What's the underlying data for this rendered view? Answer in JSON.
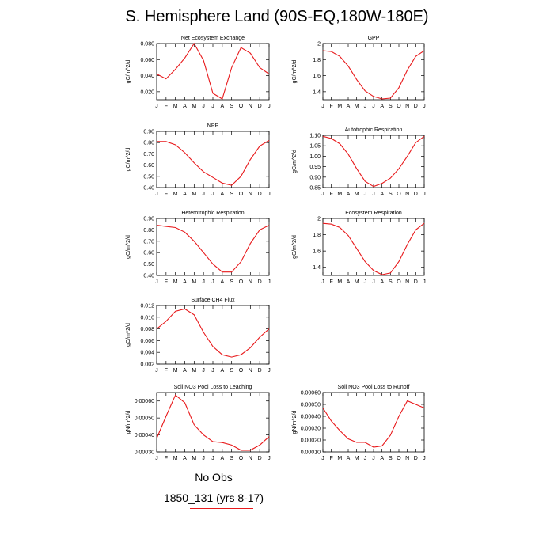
{
  "title": "S. Hemisphere Land (90S-EQ,180W-180E)",
  "colors": {
    "model": "#e8191b",
    "obs": "#2c4bd6",
    "axis": "#000000"
  },
  "legend": [
    {
      "label": "No Obs",
      "color": "#2c4bd6"
    },
    {
      "label": "1850_131 (yrs 8-17)",
      "color": "#e8191b"
    }
  ],
  "chart_data": [
    {
      "type": "line",
      "title": "Net Ecosystem Exchange",
      "ylabel": "gC/m^2/d",
      "categories": [
        "J",
        "F",
        "M",
        "A",
        "M",
        "J",
        "J",
        "A",
        "S",
        "O",
        "N",
        "D",
        "J"
      ],
      "ylim": [
        0.01,
        0.08
      ],
      "yticks": [
        0.02,
        0.04,
        0.06,
        0.08
      ],
      "ytick_labels": [
        "0.020",
        "0.040",
        "0.060",
        "0.080"
      ],
      "series": [
        {
          "values": [
            0.042,
            0.036,
            0.048,
            0.062,
            0.08,
            0.059,
            0.018,
            0.011,
            0.05,
            0.075,
            0.068,
            0.05,
            0.042
          ]
        }
      ]
    },
    {
      "type": "line",
      "title": "GPP",
      "ylabel": "gC/m^2/d",
      "categories": [
        "J",
        "F",
        "M",
        "A",
        "M",
        "J",
        "J",
        "A",
        "S",
        "O",
        "N",
        "D",
        "J"
      ],
      "ylim": [
        1.3,
        2.0
      ],
      "yticks": [
        1.4,
        1.6,
        1.8,
        2.0
      ],
      "ytick_labels": [
        "1.4",
        "1.6",
        "1.8",
        "2"
      ],
      "series": [
        {
          "values": [
            1.91,
            1.9,
            1.84,
            1.72,
            1.55,
            1.41,
            1.34,
            1.31,
            1.32,
            1.45,
            1.67,
            1.84,
            1.91
          ]
        }
      ]
    },
    {
      "type": "line",
      "title": "NPP",
      "ylabel": "gC/m^2/d",
      "categories": [
        "J",
        "F",
        "M",
        "A",
        "M",
        "J",
        "J",
        "A",
        "S",
        "O",
        "N",
        "D",
        "J"
      ],
      "ylim": [
        0.4,
        0.9
      ],
      "yticks": [
        0.4,
        0.5,
        0.6,
        0.7,
        0.8,
        0.9
      ],
      "ytick_labels": [
        "0.40",
        "0.50",
        "0.60",
        "0.70",
        "0.80",
        "0.90"
      ],
      "series": [
        {
          "values": [
            0.81,
            0.81,
            0.78,
            0.71,
            0.62,
            0.54,
            0.49,
            0.44,
            0.42,
            0.5,
            0.65,
            0.77,
            0.82
          ]
        }
      ]
    },
    {
      "type": "line",
      "title": "Autotrophic Respiration",
      "ylabel": "gC/m^2/d",
      "categories": [
        "J",
        "F",
        "M",
        "A",
        "M",
        "J",
        "J",
        "A",
        "S",
        "O",
        "N",
        "D",
        "J"
      ],
      "ylim": [
        0.85,
        1.1
      ],
      "yticks": [
        0.85,
        0.9,
        0.95,
        1.0,
        1.05,
        1.1
      ],
      "ytick_labels": [
        "0.85",
        "0.90",
        "0.95",
        "1.00",
        "1.05",
        "1.10"
      ],
      "series": [
        {
          "values": [
            1.095,
            1.085,
            1.06,
            1.01,
            0.94,
            0.88,
            0.855,
            0.87,
            0.895,
            0.94,
            1.0,
            1.065,
            1.095
          ]
        }
      ]
    },
    {
      "type": "line",
      "title": "Heterotrophic Respiration",
      "ylabel": "gC/m^2/d",
      "categories": [
        "J",
        "F",
        "M",
        "A",
        "M",
        "J",
        "J",
        "A",
        "S",
        "O",
        "N",
        "D",
        "J"
      ],
      "ylim": [
        0.4,
        0.9
      ],
      "yticks": [
        0.4,
        0.5,
        0.6,
        0.7,
        0.8,
        0.9
      ],
      "ytick_labels": [
        "0.40",
        "0.50",
        "0.60",
        "0.70",
        "0.80",
        "0.90"
      ],
      "series": [
        {
          "values": [
            0.84,
            0.83,
            0.82,
            0.78,
            0.7,
            0.6,
            0.5,
            0.43,
            0.43,
            0.52,
            0.68,
            0.8,
            0.84
          ]
        }
      ]
    },
    {
      "type": "line",
      "title": "Ecosystem Respiration",
      "ylabel": "gC/m^2/d",
      "categories": [
        "J",
        "F",
        "M",
        "A",
        "M",
        "J",
        "J",
        "A",
        "S",
        "O",
        "N",
        "D",
        "J"
      ],
      "ylim": [
        1.3,
        2.0
      ],
      "yticks": [
        1.4,
        1.6,
        1.8,
        2.0
      ],
      "ytick_labels": [
        "1.4",
        "1.6",
        "1.8",
        "2"
      ],
      "series": [
        {
          "values": [
            1.94,
            1.93,
            1.89,
            1.79,
            1.63,
            1.47,
            1.36,
            1.31,
            1.33,
            1.47,
            1.68,
            1.86,
            1.94
          ]
        }
      ]
    },
    {
      "type": "line",
      "title": "Surface CH4 Flux",
      "ylabel": "gC/m^2/d",
      "categories": [
        "J",
        "F",
        "M",
        "A",
        "M",
        "J",
        "J",
        "A",
        "S",
        "O",
        "N",
        "D",
        "J"
      ],
      "ylim": [
        0.002,
        0.012
      ],
      "yticks": [
        0.002,
        0.004,
        0.006,
        0.008,
        0.01,
        0.012
      ],
      "ytick_labels": [
        "0.002",
        "0.004",
        "0.006",
        "0.008",
        "0.010",
        "0.012"
      ],
      "series": [
        {
          "values": [
            0.008,
            0.0093,
            0.011,
            0.0114,
            0.0104,
            0.0074,
            0.005,
            0.0036,
            0.0032,
            0.0036,
            0.0048,
            0.0066,
            0.008
          ]
        }
      ]
    },
    {
      "type": "line",
      "title": "Soil NO3 Pool Loss to Leaching",
      "ylabel": "gN/m^2/d",
      "categories": [
        "J",
        "F",
        "M",
        "A",
        "M",
        "J",
        "J",
        "A",
        "S",
        "O",
        "N",
        "D",
        "J"
      ],
      "ylim": [
        0.0003,
        0.00065
      ],
      "yticks": [
        0.0003,
        0.0004,
        0.0005,
        0.0006
      ],
      "ytick_labels": [
        "0.00030",
        "0.00040",
        "0.00050",
        "0.00060"
      ],
      "series": [
        {
          "values": [
            0.00038,
            0.00051,
            0.000635,
            0.00059,
            0.00046,
            0.0004,
            0.00036,
            0.000355,
            0.00034,
            0.00031,
            0.00031,
            0.00034,
            0.00039
          ]
        }
      ]
    },
    {
      "type": "line",
      "title": "Soil NO3 Pool Loss to Runoff",
      "ylabel": "gN/m^2/d",
      "categories": [
        "J",
        "F",
        "M",
        "A",
        "M",
        "J",
        "J",
        "A",
        "S",
        "O",
        "N",
        "D",
        "J"
      ],
      "ylim": [
        0.0001,
        0.0006
      ],
      "yticks": [
        0.0001,
        0.0002,
        0.0003,
        0.0004,
        0.0005,
        0.0006
      ],
      "ytick_labels": [
        "0.00010",
        "0.00020",
        "0.00030",
        "0.00040",
        "0.00050",
        "0.00060"
      ],
      "series": [
        {
          "values": [
            0.00047,
            0.00036,
            0.00028,
            0.00021,
            0.00018,
            0.00018,
            0.00014,
            0.00015,
            0.00024,
            0.0004,
            0.00053,
            0.0005,
            0.00047
          ]
        }
      ]
    }
  ]
}
